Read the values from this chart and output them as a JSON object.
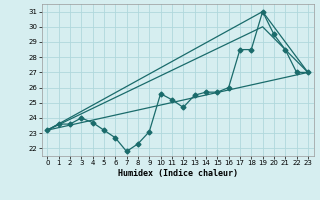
{
  "xlabel": "Humidex (Indice chaleur)",
  "bg_color": "#d6eef0",
  "grid_color": "#b0d8dc",
  "line_color": "#1a6b6b",
  "xlim": [
    -0.5,
    23.5
  ],
  "ylim": [
    21.5,
    31.5
  ],
  "xticks": [
    0,
    1,
    2,
    3,
    4,
    5,
    6,
    7,
    8,
    9,
    10,
    11,
    12,
    13,
    14,
    15,
    16,
    17,
    18,
    19,
    20,
    21,
    22,
    23
  ],
  "yticks": [
    22,
    23,
    24,
    25,
    26,
    27,
    28,
    29,
    30,
    31
  ],
  "series1_x": [
    0,
    1,
    2,
    3,
    4,
    5,
    6,
    7,
    8,
    9,
    10,
    11,
    12,
    13,
    14,
    15,
    16,
    17,
    18,
    19,
    20,
    21,
    22,
    23
  ],
  "series1_y": [
    23.2,
    23.6,
    23.6,
    24.0,
    23.7,
    23.2,
    22.7,
    21.8,
    22.3,
    23.1,
    25.6,
    25.2,
    24.7,
    25.5,
    25.7,
    25.7,
    26.0,
    28.5,
    28.5,
    31.0,
    29.5,
    28.5,
    27.0,
    27.0
  ],
  "line2_x": [
    0,
    23
  ],
  "line2_y": [
    23.2,
    27.0
  ],
  "line3_x": [
    0,
    19,
    23
  ],
  "line3_y": [
    23.2,
    31.0,
    27.0
  ],
  "line4_x": [
    0,
    19,
    23
  ],
  "line4_y": [
    23.2,
    30.0,
    27.0
  ]
}
